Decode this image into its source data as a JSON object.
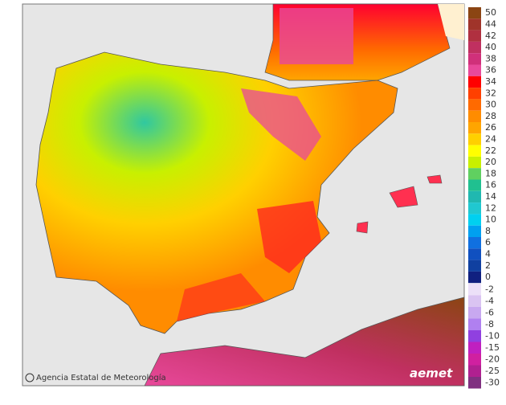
{
  "legend": {
    "positive": [
      {
        "label": "50",
        "color": "#8b4513"
      },
      {
        "label": "44",
        "color": "#a0342a"
      },
      {
        "label": "42",
        "color": "#b03040"
      },
      {
        "label": "40",
        "color": "#c03060"
      },
      {
        "label": "38",
        "color": "#d0307a"
      },
      {
        "label": "36",
        "color": "#e8489a"
      },
      {
        "label": "34",
        "color": "#ff0000"
      },
      {
        "label": "32",
        "color": "#ff4000"
      },
      {
        "label": "30",
        "color": "#ff6a00"
      },
      {
        "label": "28",
        "color": "#ff8c00"
      },
      {
        "label": "26",
        "color": "#ffa500"
      },
      {
        "label": "24",
        "color": "#ffd000"
      },
      {
        "label": "22",
        "color": "#ffff00"
      },
      {
        "label": "20",
        "color": "#c8f000"
      },
      {
        "label": "18",
        "color": "#60d060"
      },
      {
        "label": "16",
        "color": "#20c090"
      },
      {
        "label": "14",
        "color": "#20b8b0"
      },
      {
        "label": "12",
        "color": "#20c8d0"
      },
      {
        "label": "10",
        "color": "#00d0f0"
      },
      {
        "label": "8",
        "color": "#00a0f0"
      },
      {
        "label": "6",
        "color": "#1070e0"
      },
      {
        "label": "4",
        "color": "#1050c0"
      },
      {
        "label": "2",
        "color": "#1040a0"
      },
      {
        "label": "0",
        "color": "#102080"
      }
    ],
    "negative": [
      {
        "label": "-2",
        "color": "#ece0f8"
      },
      {
        "label": "-4",
        "color": "#dac4f2"
      },
      {
        "label": "-6",
        "color": "#c8a8f0"
      },
      {
        "label": "-8",
        "color": "#b080f0"
      },
      {
        "label": "-10",
        "color": "#9040e0"
      },
      {
        "label": "-15",
        "color": "#c020c0"
      },
      {
        "label": "-20",
        "color": "#d020a0"
      },
      {
        "label": "-25",
        "color": "#b02090"
      },
      {
        "label": "-30",
        "color": "#803080"
      }
    ]
  },
  "credit": "Agencia Estatal de Meteorología",
  "logo": "aemet"
}
